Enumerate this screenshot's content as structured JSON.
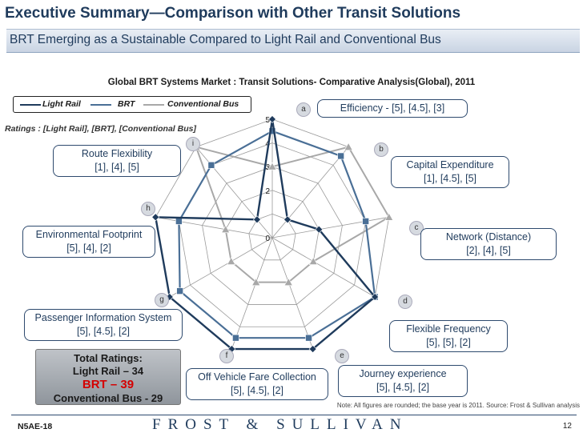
{
  "header": {
    "title": "Executive Summary—Comparison with Other Transit Solutions",
    "subtitle": "BRT Emerging as a Sustainable Compared to Light Rail and Conventional Bus"
  },
  "ratings_note": "Ratings : [Light Rail], [BRT], [Conventional Bus]",
  "axes": [
    {
      "badge": "a",
      "name": "Efficiency",
      "ratings": "[5], [4.5], [3]"
    },
    {
      "badge": "b",
      "name": "Capital Expenditure",
      "ratings": "[1], [4.5], [5]"
    },
    {
      "badge": "c",
      "name": "Network (Distance)",
      "ratings": "[2], [4], [5]"
    },
    {
      "badge": "d",
      "name": "Flexible Frequency",
      "ratings": "[5], [5], [2]"
    },
    {
      "badge": "e",
      "name": "Journey experience",
      "ratings": "[5], [4.5], [2]"
    },
    {
      "badge": "f",
      "name": "Off Vehicle Fare Collection",
      "ratings": "[5], [4.5], [2]"
    },
    {
      "badge": "g",
      "name": "Passenger Information System",
      "ratings": "[5], [4.5], [2]"
    },
    {
      "badge": "h",
      "name": "Environmental Footprint",
      "ratings": "[5], [4], [2]"
    },
    {
      "badge": "i",
      "name": "Route Flexibility",
      "ratings": "[1], [4], [5]"
    }
  ],
  "totals": {
    "heading": "Total Ratings:",
    "light_rail": "Light Rail – 34",
    "brt": "BRT – 39",
    "conventional_bus": "Conventional Bus - 29"
  },
  "note": "Note: All figures are rounded; the base year is 2011. Source: Frost & Sullivan analysis",
  "footer": {
    "code": "N5AE-18",
    "brand": "FROST & SULLIVAN",
    "page": "12"
  },
  "colors": {
    "light_rail": "#1f3b5c",
    "brt": "#4a6f96",
    "conventional_bus": "#a8a8a8",
    "title": "#1f3b5c",
    "brt_total": "#d40000"
  },
  "chart_data": {
    "type": "radar",
    "title": "Global BRT Systems Market : Transit Solutions- Comparative Analysis(Global), 2011",
    "categories": [
      "a",
      "b",
      "c",
      "d",
      "e",
      "f",
      "g",
      "h",
      "i"
    ],
    "tick_labels": [
      "0",
      "2",
      "3",
      "4",
      "5"
    ],
    "range": [
      0,
      5
    ],
    "legend_placement": "top-left",
    "series": [
      {
        "name": "Light Rail",
        "values": [
          5,
          1,
          2,
          5,
          5,
          5,
          5,
          5,
          1
        ]
      },
      {
        "name": "BRT",
        "values": [
          4.5,
          4.5,
          4,
          5,
          4.5,
          4.5,
          4.5,
          4,
          4
        ]
      },
      {
        "name": "Conventional Bus",
        "values": [
          3,
          5,
          5,
          2,
          2,
          2,
          2,
          2,
          5
        ]
      }
    ]
  }
}
